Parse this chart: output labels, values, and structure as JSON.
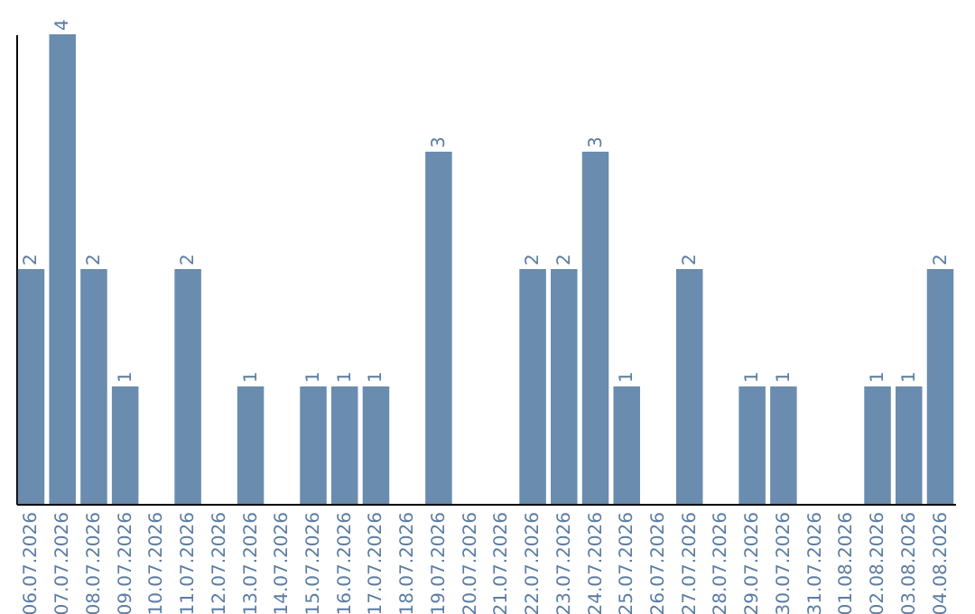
{
  "chart_data": {
    "type": "bar",
    "categories": [
      "06.07.2026",
      "07.07.2026",
      "08.07.2026",
      "09.07.2026",
      "10.07.2026",
      "11.07.2026",
      "12.07.2026",
      "13.07.2026",
      "14.07.2026",
      "15.07.2026",
      "16.07.2026",
      "17.07.2026",
      "18.07.2026",
      "19.07.2026",
      "20.07.2026",
      "21.07.2026",
      "22.07.2026",
      "23.07.2026",
      "24.07.2026",
      "25.07.2026",
      "26.07.2026",
      "27.07.2026",
      "28.07.2026",
      "29.07.2026",
      "30.07.2026",
      "31.07.2026",
      "01.08.2026",
      "02.08.2026",
      "03.08.2026",
      "04.08.2026"
    ],
    "values": [
      2,
      4,
      2,
      1,
      0,
      2,
      0,
      1,
      0,
      1,
      1,
      1,
      0,
      3,
      0,
      0,
      2,
      2,
      3,
      1,
      0,
      2,
      0,
      1,
      1,
      0,
      0,
      1,
      1,
      2
    ],
    "value_labels": [
      "2",
      "4",
      "2",
      "1",
      null,
      "2",
      null,
      "1",
      null,
      "1",
      "1",
      "1",
      null,
      "3",
      null,
      null,
      "2",
      "2",
      "3",
      "1",
      null,
      "2",
      null,
      "1",
      "1",
      null,
      null,
      "1",
      "1",
      "2"
    ],
    "color": "#6a8caf",
    "tick_labels": "x"
  }
}
